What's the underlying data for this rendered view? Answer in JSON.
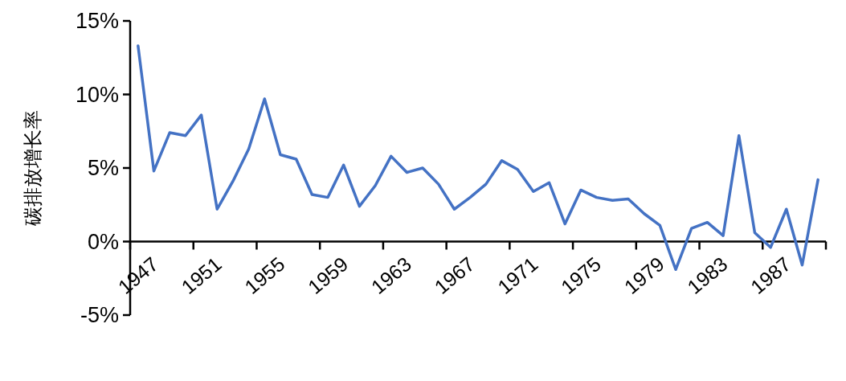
{
  "chart_data": {
    "type": "line",
    "ylabel": "碳排放增长率",
    "categories": [
      "1947",
      null,
      null,
      null,
      "1951",
      null,
      null,
      null,
      "1955",
      null,
      null,
      null,
      "1959",
      null,
      null,
      null,
      "1963",
      null,
      null,
      null,
      "1967",
      null,
      null,
      null,
      "1971",
      null,
      null,
      null,
      "1975",
      null,
      null,
      null,
      "1979",
      null,
      null,
      null,
      "1983",
      null,
      null,
      null,
      "1987",
      null,
      null,
      null
    ],
    "series": [
      {
        "color": "#4472c4",
        "values": [
          13.3,
          4.8,
          7.4,
          7.2,
          8.6,
          2.2,
          4.1,
          6.3,
          9.7,
          5.9,
          5.6,
          3.2,
          3.0,
          5.2,
          2.4,
          3.8,
          5.8,
          4.7,
          5.0,
          3.9,
          2.2,
          3.0,
          3.9,
          5.5,
          4.9,
          3.4,
          4.0,
          1.2,
          3.5,
          3.0,
          2.8,
          2.9,
          1.9,
          1.1,
          -1.9,
          0.9,
          1.3,
          0.4,
          7.2,
          0.6,
          -0.4,
          2.2,
          -1.6,
          4.2
        ]
      }
    ],
    "ylim": [
      -5,
      15
    ],
    "yticks": [
      {
        "value": -5,
        "label": "-5%"
      },
      {
        "value": 0,
        "label": "0%"
      },
      {
        "value": 5,
        "label": "5%"
      },
      {
        "value": 10,
        "label": "10%"
      },
      {
        "value": 15,
        "label": "15%"
      }
    ],
    "grid": false,
    "marker": "none",
    "line_style": "solid"
  }
}
